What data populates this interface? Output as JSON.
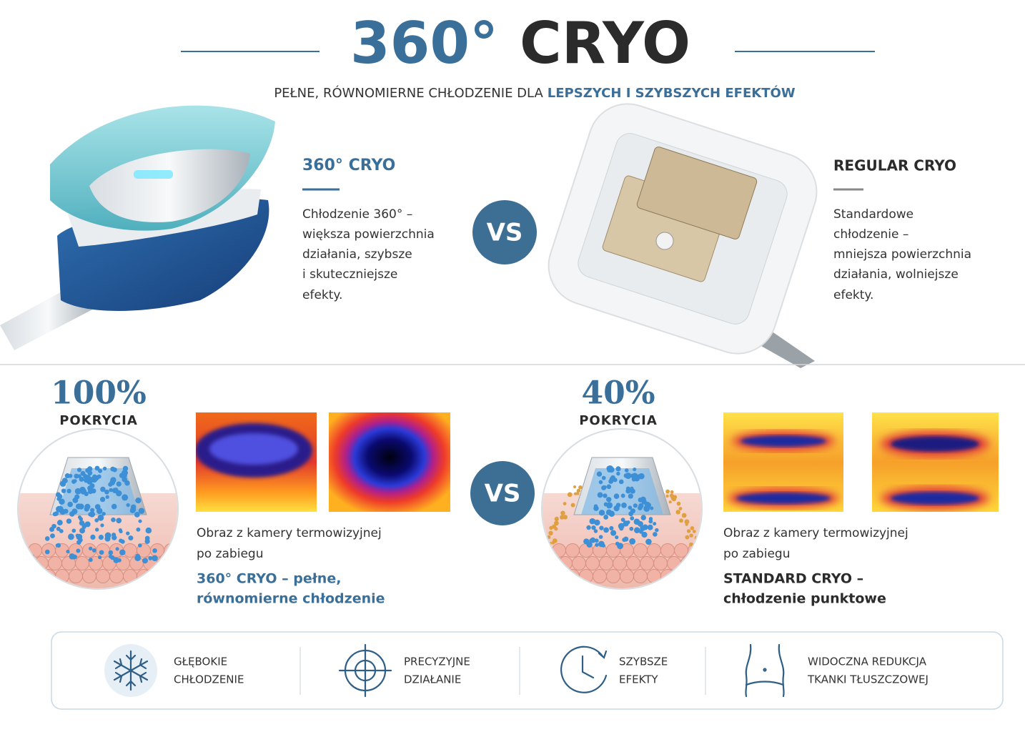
{
  "header": {
    "title_number": "360°",
    "title_word": "CRYO",
    "subtitle_plain": "PEŁNE, RÓWNOMIERNE CHŁODZENIE DLA",
    "subtitle_highlight": "LEPSZYCH I SZYBSZYCH EFEKTÓW"
  },
  "comparison": {
    "left": {
      "heading": "360° CRYO",
      "description": [
        "Chłodzenie 360° –",
        "większa powierzchnia",
        "działania, szybsze",
        "i skuteczniejsze",
        "efekty."
      ]
    },
    "vs": "VS",
    "right": {
      "heading": "REGULAR CRYO",
      "description": [
        "Standardowe",
        "chłodzenie –",
        "mniejsza powierzchnia",
        "działania, wolniejsze",
        "efekty."
      ]
    }
  },
  "coverage": {
    "left": {
      "percent": "100%",
      "label": "POKRYCIA",
      "caption": [
        "Obraz z kamery termowizyjnej",
        "po zabiegu"
      ],
      "conclusion": [
        "360° CRYO – pełne,",
        "równomierne chłodzenie"
      ]
    },
    "vs": "VS",
    "right": {
      "percent": "40%",
      "label": "POKRYCIA",
      "caption": [
        "Obraz z kamery termowizyjnej",
        "po zabiegu"
      ],
      "conclusion": [
        "STANDARD CRYO –",
        "chłodzenie punktowe"
      ]
    }
  },
  "features": [
    {
      "lines": [
        "GŁĘBOKIE",
        "CHŁODZENIE"
      ]
    },
    {
      "lines": [
        "PRECYZYJNE",
        "DZIAŁANIE"
      ]
    },
    {
      "lines": [
        "SZYBSZE",
        "EFEKTY"
      ]
    },
    {
      "lines": [
        "WIDOCZNA REDUKCJA",
        "TKANKI TŁUSZCZOWEJ"
      ]
    }
  ]
}
